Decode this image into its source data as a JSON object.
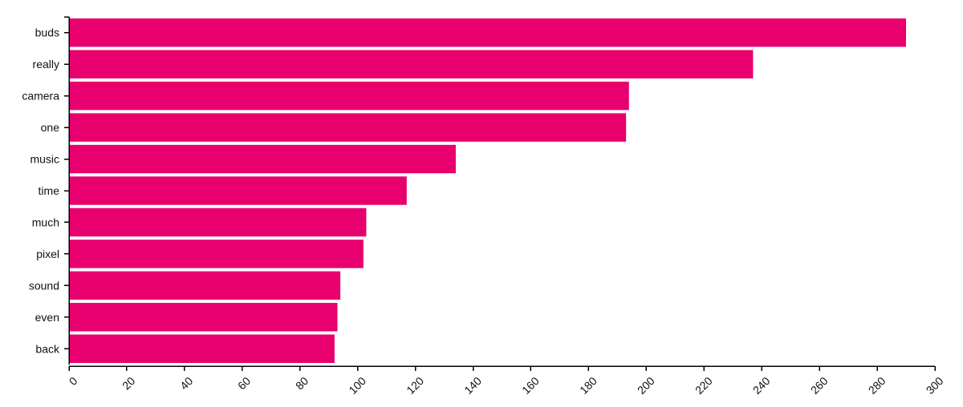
{
  "chart_data": {
    "type": "bar",
    "orientation": "horizontal",
    "categories": [
      "buds",
      "really",
      "camera",
      "one",
      "music",
      "time",
      "much",
      "pixel",
      "sound",
      "even",
      "back"
    ],
    "values": [
      290,
      237,
      194,
      193,
      134,
      117,
      103,
      102,
      94,
      93,
      92
    ],
    "xlim": [
      0,
      300
    ],
    "xticks": [
      0,
      20,
      40,
      60,
      80,
      100,
      120,
      140,
      160,
      180,
      200,
      220,
      240,
      260,
      280,
      300
    ],
    "title": "",
    "xlabel": "",
    "ylabel": "",
    "grid": false,
    "legend": "none",
    "bar_color": "#e8006f"
  }
}
